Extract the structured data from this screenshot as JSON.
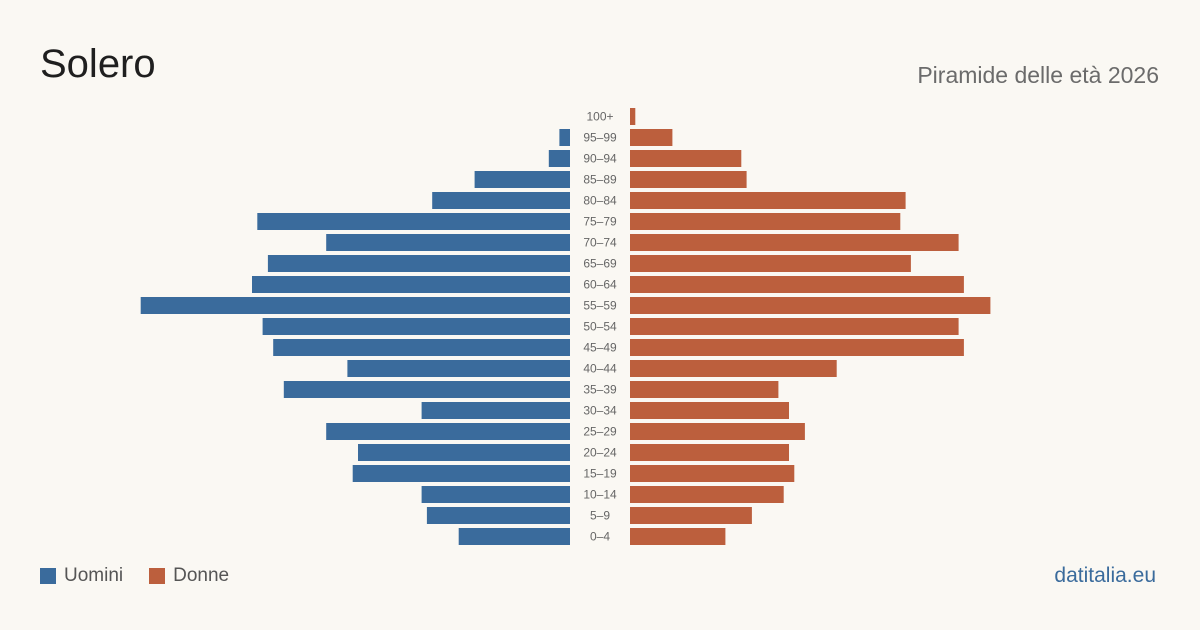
{
  "header": {
    "title": "Solero",
    "subtitle": "Piramide delle età 2026"
  },
  "legend": {
    "men_label": "Uomini",
    "women_label": "Donne"
  },
  "brand": "datitalia.eu",
  "colors": {
    "men": "#3a6b9c",
    "women": "#bc5f3d",
    "background": "#faf8f3",
    "axis_label": "#666666"
  },
  "chart_data": {
    "type": "bar",
    "orientation": "horizontal-pyramid",
    "title": "Piramide delle età 2026",
    "categories": [
      "100+",
      "95-99",
      "90-94",
      "85-89",
      "80-84",
      "75-79",
      "70-74",
      "65-69",
      "60-64",
      "55-59",
      "50-54",
      "45-49",
      "40-44",
      "35-39",
      "30-34",
      "25-29",
      "20-24",
      "15-19",
      "10-14",
      "5-9",
      "0-4"
    ],
    "series": [
      {
        "name": "Uomini",
        "values": [
          0,
          2,
          4,
          18,
          26,
          59,
          46,
          57,
          60,
          81,
          58,
          56,
          42,
          54,
          28,
          46,
          40,
          41,
          28,
          27,
          21
        ]
      },
      {
        "name": "Donne",
        "values": [
          1,
          8,
          21,
          22,
          52,
          51,
          62,
          53,
          63,
          68,
          62,
          63,
          39,
          28,
          30,
          33,
          30,
          31,
          29,
          23,
          18
        ]
      }
    ],
    "legend_position": "bottom-left",
    "grid": false
  }
}
